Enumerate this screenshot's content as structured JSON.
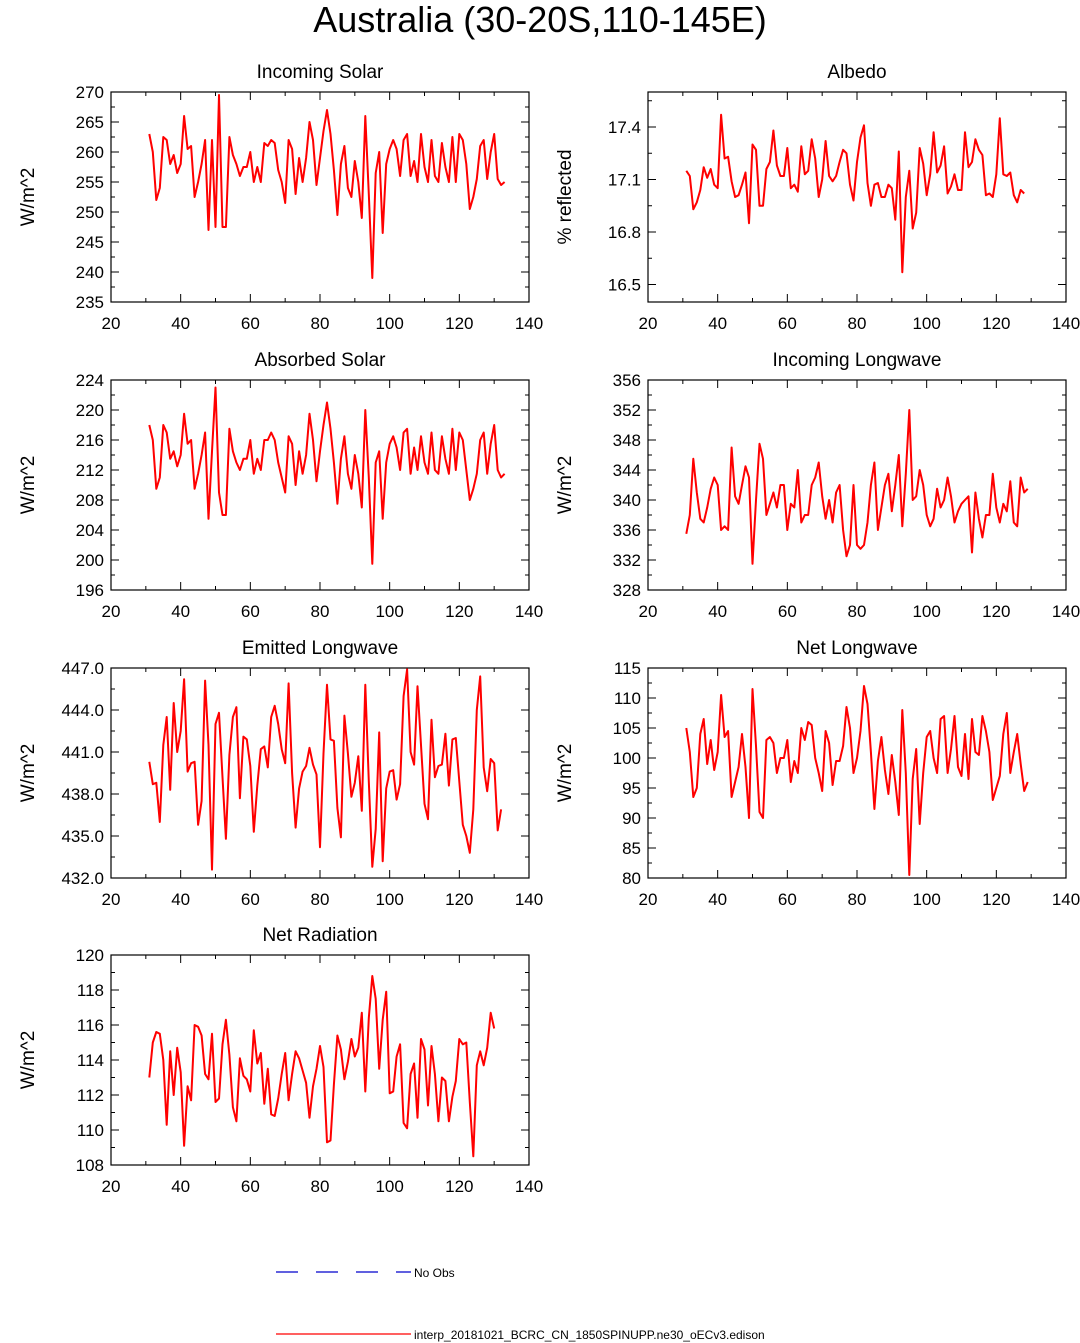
{
  "title": "Australia (30-20S,110-145E)",
  "colors": {
    "series": "#ff0000",
    "obs": "#0000cc",
    "axis": "#000000"
  },
  "legend": {
    "obs_label": "No Obs",
    "model_label": "interp_20181021_BCRC_CN_1850SPINUPP.ne30_oECv3.edison"
  },
  "chart_data": [
    {
      "type": "line",
      "title": "Incoming Solar",
      "ylabel": "W/m^2",
      "xlim": [
        20,
        140
      ],
      "ylim": [
        235,
        270
      ],
      "xticks": [
        20,
        40,
        60,
        80,
        100,
        120,
        140
      ],
      "yticks": [
        235,
        240,
        245,
        250,
        255,
        260,
        265,
        270
      ],
      "ytick_labels": [
        "235",
        "240",
        "245",
        "250",
        "255",
        "260",
        "265",
        "270"
      ],
      "x_start": 31,
      "series": [
        {
          "name": "interp_20181021_BCRC_CN_1850SPINUPP.ne30_oECv3.edison",
          "values": [
            263,
            260,
            252,
            254,
            262.5,
            262,
            258,
            259.5,
            256.5,
            258,
            266,
            260.5,
            261,
            252.5,
            255,
            258,
            262,
            247,
            262,
            247.5,
            269.5,
            247.5,
            247.5,
            262.5,
            259.5,
            258,
            256,
            257.5,
            257.5,
            260,
            255,
            257.5,
            255,
            261.5,
            261,
            262,
            261.5,
            257,
            255,
            251.5,
            262,
            260.5,
            253,
            259,
            255,
            259,
            265,
            262,
            254.5,
            259,
            263.5,
            267,
            263,
            257,
            249.5,
            258,
            261,
            254,
            252.5,
            258.5,
            255,
            249,
            266,
            253,
            239,
            256.5,
            260,
            246.5,
            258,
            260.5,
            262,
            260.5,
            256,
            262,
            263,
            256,
            258.5,
            255,
            263,
            257.5,
            255,
            262,
            256,
            255,
            261.5,
            257.5,
            255,
            262.5,
            255,
            263,
            262,
            258,
            250.5,
            252.5,
            255.5,
            261,
            262,
            255.5,
            260,
            263,
            255.5,
            254.5,
            255
          ]
        }
      ]
    },
    {
      "type": "line",
      "title": "Albedo",
      "ylabel": "% reflected",
      "xlim": [
        20,
        140
      ],
      "ylim": [
        16.4,
        17.6
      ],
      "xticks": [
        20,
        40,
        60,
        80,
        100,
        120,
        140
      ],
      "yticks": [
        16.5,
        16.8,
        17.1,
        17.4
      ],
      "ytick_labels": [
        "16.5",
        "16.8",
        "17.1",
        "17.4"
      ],
      "x_start": 31,
      "series": [
        {
          "name": "interp_20181021_BCRC_CN_1850SPINUPP.ne30_oECv3.edison",
          "values": [
            17.15,
            17.12,
            16.93,
            16.97,
            17.04,
            17.17,
            17.11,
            17.16,
            17.07,
            17.05,
            17.47,
            17.22,
            17.23,
            17.09,
            17.0,
            17.01,
            17.07,
            17.14,
            16.85,
            17.3,
            17.27,
            16.95,
            16.95,
            17.16,
            17.2,
            17.38,
            17.18,
            17.12,
            17.12,
            17.28,
            17.05,
            17.07,
            17.03,
            17.29,
            17.13,
            17.15,
            17.33,
            17.22,
            17.0,
            17.1,
            17.32,
            17.12,
            17.09,
            17.12,
            17.2,
            17.27,
            17.25,
            17.07,
            16.98,
            17.2,
            17.34,
            17.41,
            17.08,
            16.95,
            17.07,
            17.08,
            17.0,
            17.0,
            17.07,
            17.05,
            16.87,
            17.26,
            16.57,
            17.0,
            17.15,
            16.82,
            16.91,
            17.28,
            17.19,
            17.01,
            17.13,
            17.37,
            17.14,
            17.18,
            17.29,
            17.02,
            17.06,
            17.13,
            17.04,
            17.04,
            17.37,
            17.17,
            17.2,
            17.33,
            17.27,
            17.24,
            17.01,
            17.02,
            17.0,
            17.13,
            17.45,
            17.13,
            17.12,
            17.14,
            17.01,
            16.97,
            17.04,
            17.02
          ]
        }
      ]
    },
    {
      "type": "line",
      "title": "Absorbed Solar",
      "ylabel": "W/m^2",
      "xlim": [
        20,
        140
      ],
      "ylim": [
        196,
        224
      ],
      "xticks": [
        20,
        40,
        60,
        80,
        100,
        120,
        140
      ],
      "yticks": [
        196,
        200,
        204,
        208,
        212,
        216,
        220,
        224
      ],
      "ytick_labels": [
        "196",
        "200",
        "204",
        "208",
        "212",
        "216",
        "220",
        "224"
      ],
      "x_start": 31,
      "series": [
        {
          "name": "interp_20181021_BCRC_CN_1850SPINUPP.ne30_oECv3.edison",
          "values": [
            218,
            216,
            209.5,
            211,
            218,
            217,
            213.5,
            214.5,
            212.5,
            214,
            219.5,
            215.5,
            216,
            209.5,
            211.5,
            214,
            217,
            205.5,
            214.5,
            223,
            209,
            206,
            206,
            217.5,
            214.5,
            213,
            212,
            213.5,
            213.5,
            216,
            211.5,
            213.5,
            212,
            216,
            216,
            217,
            216,
            213,
            211,
            209,
            216.5,
            215.5,
            210,
            214.5,
            211.5,
            214,
            219.5,
            216,
            210.5,
            214.5,
            218,
            221,
            217.5,
            213,
            207.5,
            213.5,
            216.5,
            211.5,
            209.5,
            214,
            211.5,
            207,
            220,
            211,
            199.5,
            213,
            214.5,
            205.5,
            213,
            215.5,
            216.5,
            215,
            212,
            217,
            217.5,
            211.5,
            215,
            212,
            216.5,
            213,
            211.5,
            217,
            212,
            211.5,
            216.5,
            213.5,
            211.5,
            217.5,
            212,
            217,
            216,
            212,
            208,
            209.5,
            211.5,
            216,
            217,
            211.5,
            215.5,
            218,
            212,
            211,
            211.5
          ]
        }
      ]
    },
    {
      "type": "line",
      "title": "Incoming Longwave",
      "ylabel": "W/m^2",
      "xlim": [
        20,
        140
      ],
      "ylim": [
        328,
        356
      ],
      "xticks": [
        20,
        40,
        60,
        80,
        100,
        120,
        140
      ],
      "yticks": [
        328,
        332,
        336,
        340,
        344,
        348,
        352,
        356
      ],
      "ytick_labels": [
        "328",
        "332",
        "336",
        "340",
        "344",
        "348",
        "352",
        "356"
      ],
      "x_start": 31,
      "series": [
        {
          "name": "interp_20181021_BCRC_CN_1850SPINUPP.ne30_oECv3.edison",
          "values": [
            335.5,
            338,
            345.5,
            341,
            337.5,
            337,
            339,
            341.5,
            343,
            342,
            336,
            336.5,
            336,
            347,
            340.5,
            339.5,
            342,
            344.5,
            343,
            331.5,
            340,
            347.5,
            345.5,
            338,
            339.5,
            341,
            339,
            342,
            342,
            336,
            339.5,
            339,
            344,
            337,
            338,
            338,
            342,
            343,
            345,
            340.5,
            337.5,
            340,
            337,
            341,
            342,
            336,
            332.5,
            334,
            342,
            334,
            333.5,
            334,
            337,
            342,
            345,
            336,
            339,
            342,
            343.5,
            338.5,
            342,
            346,
            336.5,
            343.5,
            352,
            340,
            340.5,
            344,
            342,
            338,
            336.5,
            337.5,
            341.5,
            339,
            340,
            343,
            340.5,
            337,
            338.5,
            339.5,
            340,
            340.5,
            333,
            341,
            337.5,
            335,
            338,
            338,
            343.5,
            339,
            337,
            339.5,
            338.5,
            342.5,
            337,
            336.5,
            343,
            341,
            341.5
          ]
        }
      ]
    },
    {
      "type": "line",
      "title": "Emitted Longwave",
      "ylabel": "W/m^2",
      "xlim": [
        20,
        140
      ],
      "ylim": [
        432,
        447
      ],
      "xticks": [
        20,
        40,
        60,
        80,
        100,
        120,
        140
      ],
      "yticks": [
        432,
        435,
        438,
        441,
        444,
        447
      ],
      "ytick_labels": [
        "432.0",
        "435.0",
        "438.0",
        "441.0",
        "444.0",
        "447.0"
      ],
      "x_start": 31,
      "series": [
        {
          "name": "interp_20181021_BCRC_CN_1850SPINUPP.ne30_oECv3.edison",
          "values": [
            440.3,
            438.7,
            438.8,
            436,
            441.5,
            443.5,
            438.3,
            444.5,
            441,
            442.5,
            446.2,
            439.6,
            440.2,
            440.3,
            435.8,
            437.5,
            446.1,
            441.5,
            432.6,
            443,
            443.8,
            439.2,
            434.8,
            440.8,
            443.5,
            444.2,
            437.7,
            442.1,
            441.9,
            440,
            435.3,
            438.6,
            441.2,
            441.4,
            439.9,
            443.5,
            444.3,
            443,
            441.2,
            440.2,
            445.9,
            439.5,
            435.6,
            438.4,
            439.6,
            440,
            441.3,
            440.1,
            439.4,
            434.2,
            440.9,
            445.8,
            441.9,
            441.8,
            437,
            434.9,
            443.6,
            440.9,
            437.8,
            438.8,
            440.7,
            436.8,
            445.8,
            438.9,
            432.8,
            435.5,
            442.4,
            433.2,
            438.4,
            439.6,
            439.7,
            437.6,
            438.7,
            445,
            446.9,
            441,
            440.1,
            445.7,
            441.5,
            437.3,
            436.2,
            443.3,
            439.2,
            440,
            440.1,
            442.3,
            438.6,
            441.9,
            442,
            438.9,
            435.8,
            435,
            433.8,
            436.9,
            444,
            446.4,
            439.9,
            438.2,
            440.5,
            440.2,
            435.4,
            436.9
          ]
        }
      ]
    },
    {
      "type": "line",
      "title": "Net Longwave",
      "ylabel": "W/m^2",
      "xlim": [
        20,
        140
      ],
      "ylim": [
        80,
        115
      ],
      "xticks": [
        20,
        40,
        60,
        80,
        100,
        120,
        140
      ],
      "yticks": [
        80,
        85,
        90,
        95,
        100,
        105,
        110,
        115
      ],
      "ytick_labels": [
        "80",
        "85",
        "90",
        "95",
        "100",
        "105",
        "110",
        "115"
      ],
      "x_start": 31,
      "series": [
        {
          "name": "interp_20181021_BCRC_CN_1850SPINUPP.ne30_oECv3.edison",
          "values": [
            105,
            101,
            93.5,
            95,
            104,
            106.5,
            99,
            103,
            98,
            101,
            110.5,
            103.5,
            104.5,
            93.5,
            96,
            98.5,
            104,
            98.5,
            90,
            111.5,
            102,
            91,
            90,
            103,
            103.5,
            102.5,
            97.5,
            100,
            100,
            103,
            96,
            99.5,
            97.5,
            105,
            103,
            106,
            105.5,
            100,
            97.5,
            94.5,
            104.5,
            102.5,
            95.5,
            99.5,
            99.5,
            102,
            108.5,
            105,
            97.5,
            100,
            104.5,
            112,
            109,
            101,
            91.5,
            99.5,
            103.5,
            98,
            94,
            100.5,
            96,
            90.5,
            108,
            97.5,
            80.5,
            96.5,
            101.5,
            89,
            97.5,
            103.5,
            104.5,
            100,
            97.5,
            106.5,
            107,
            97.5,
            101.5,
            107,
            98.5,
            97,
            104,
            96.5,
            106.5,
            101,
            100.5,
            107,
            104.5,
            101,
            93,
            95,
            97,
            104,
            107.5,
            97.5,
            101,
            104,
            99,
            94.5,
            96
          ]
        }
      ]
    },
    {
      "type": "line",
      "title": "Net Radiation",
      "ylabel": "W/m^2",
      "xlim": [
        20,
        140
      ],
      "ylim": [
        108,
        120
      ],
      "xticks": [
        20,
        40,
        60,
        80,
        100,
        120,
        140
      ],
      "yticks": [
        108,
        110,
        112,
        114,
        116,
        118,
        120
      ],
      "ytick_labels": [
        "108",
        "110",
        "112",
        "114",
        "116",
        "118",
        "120"
      ],
      "x_start": 31,
      "series": [
        {
          "name": "interp_20181021_BCRC_CN_1850SPINUPP.ne30_oECv3.edison",
          "values": [
            113,
            115,
            115.6,
            115.5,
            114,
            110.3,
            114.5,
            112,
            114.7,
            113.3,
            109.1,
            112.5,
            111.7,
            116,
            115.9,
            115.4,
            113.2,
            112.9,
            115.5,
            111.6,
            111.8,
            114.9,
            116.3,
            114.3,
            111.3,
            110.5,
            114.1,
            113.1,
            112.9,
            112.2,
            115.7,
            113.8,
            114.4,
            111.5,
            113.5,
            110.9,
            110.8,
            111.8,
            113.2,
            114.4,
            111.7,
            113.2,
            114.5,
            114.1,
            113.4,
            112.7,
            110.7,
            112.5,
            113.5,
            114.8,
            113.6,
            109.3,
            109.4,
            112.6,
            115.4,
            114.6,
            112.9,
            113.9,
            115.2,
            114.2,
            114.7,
            116.7,
            112.2,
            116.4,
            118.8,
            117.5,
            113.5,
            116.3,
            117.9,
            112.1,
            112.2,
            114.2,
            114.9,
            110.4,
            110.1,
            113.2,
            113.8,
            110.7,
            115.2,
            114.6,
            111.4,
            114.8,
            113.2,
            110.5,
            113,
            112.8,
            110.5,
            111.9,
            112.8,
            115.2,
            114.9,
            115,
            111.6,
            108.5,
            113.7,
            114.5,
            113.7,
            114.7,
            116.7,
            115.8
          ]
        }
      ]
    }
  ]
}
